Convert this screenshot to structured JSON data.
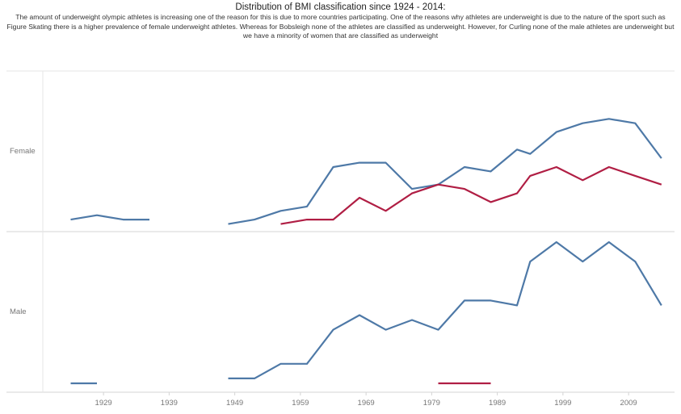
{
  "chart_data": {
    "type": "line",
    "title": "Distribution of BMI classification since 1924 - 2014:",
    "subtitle": "The amount of underweight olympic athletes is increasing one of the reason for this is due to more countries participating. One of the reasons why athletes are underweight is due to the nature of the sport such as Figure Skating there is a higher prevalence of female underweight athletes. Whereas for Bobsleigh none of the athletes are classified as underweight. However, for Curling none of the male athletes are underweight but we have a minority of women that are classified as underweight",
    "xlabel": "",
    "ylabel": "",
    "x_ticks": [
      "1929",
      "1939",
      "1949",
      "1959",
      "1969",
      "1979",
      "1989",
      "1999",
      "2009"
    ],
    "xlim": [
      1920,
      2016
    ],
    "colors": {
      "blue": "#4e79a7",
      "red": "#b01e44"
    },
    "panels": [
      {
        "label": "Female",
        "ylim": [
          0,
          28
        ],
        "series": [
          {
            "name": "blue",
            "color": "#4e79a7",
            "segments": [
              [
                [
                  1924,
                  2
                ],
                [
                  1928,
                  3
                ],
                [
                  1932,
                  2
                ],
                [
                  1936,
                  2
                ]
              ],
              [
                [
                  1948,
                  1
                ],
                [
                  1952,
                  2
                ],
                [
                  1956,
                  4
                ],
                [
                  1960,
                  5
                ],
                [
                  1964,
                  14
                ],
                [
                  1968,
                  15
                ],
                [
                  1972,
                  15
                ],
                [
                  1976,
                  9
                ],
                [
                  1980,
                  10
                ],
                [
                  1984,
                  14
                ],
                [
                  1988,
                  13
                ],
                [
                  1992,
                  18
                ],
                [
                  1994,
                  17
                ],
                [
                  1998,
                  22
                ],
                [
                  2002,
                  24
                ],
                [
                  2006,
                  25
                ],
                [
                  2010,
                  24
                ],
                [
                  2014,
                  16
                ]
              ]
            ]
          },
          {
            "name": "red",
            "color": "#b01e44",
            "segments": [
              [
                [
                  1956,
                  1
                ],
                [
                  1960,
                  2
                ],
                [
                  1964,
                  2
                ],
                [
                  1968,
                  7
                ],
                [
                  1972,
                  4
                ],
                [
                  1976,
                  8
                ],
                [
                  1980,
                  10
                ],
                [
                  1984,
                  9
                ],
                [
                  1988,
                  6
                ],
                [
                  1992,
                  8
                ],
                [
                  1994,
                  12
                ],
                [
                  1998,
                  14
                ],
                [
                  2002,
                  11
                ],
                [
                  2006,
                  14
                ],
                [
                  2010,
                  12
                ],
                [
                  2014,
                  10
                ]
              ]
            ]
          }
        ]
      },
      {
        "label": "Male",
        "ylim": [
          0,
          30
        ],
        "series": [
          {
            "name": "blue",
            "color": "#4e79a7",
            "segments": [
              [
                [
                  1924,
                  1
                ],
                [
                  1928,
                  1
                ]
              ],
              [
                [
                  1948,
                  2
                ],
                [
                  1952,
                  2
                ],
                [
                  1956,
                  5
                ],
                [
                  1960,
                  5
                ],
                [
                  1964,
                  12
                ],
                [
                  1968,
                  15
                ],
                [
                  1972,
                  12
                ],
                [
                  1976,
                  14
                ],
                [
                  1980,
                  12
                ],
                [
                  1984,
                  18
                ],
                [
                  1988,
                  18
                ],
                [
                  1992,
                  17
                ],
                [
                  1994,
                  26
                ],
                [
                  1998,
                  30
                ],
                [
                  2002,
                  26
                ],
                [
                  2006,
                  30
                ],
                [
                  2010,
                  26
                ],
                [
                  2014,
                  17
                ]
              ]
            ]
          },
          {
            "name": "red",
            "color": "#b01e44",
            "segments": [
              [
                [
                  1980,
                  1
                ],
                [
                  1984,
                  1
                ],
                [
                  1988,
                  1
                ]
              ]
            ]
          }
        ]
      }
    ]
  }
}
